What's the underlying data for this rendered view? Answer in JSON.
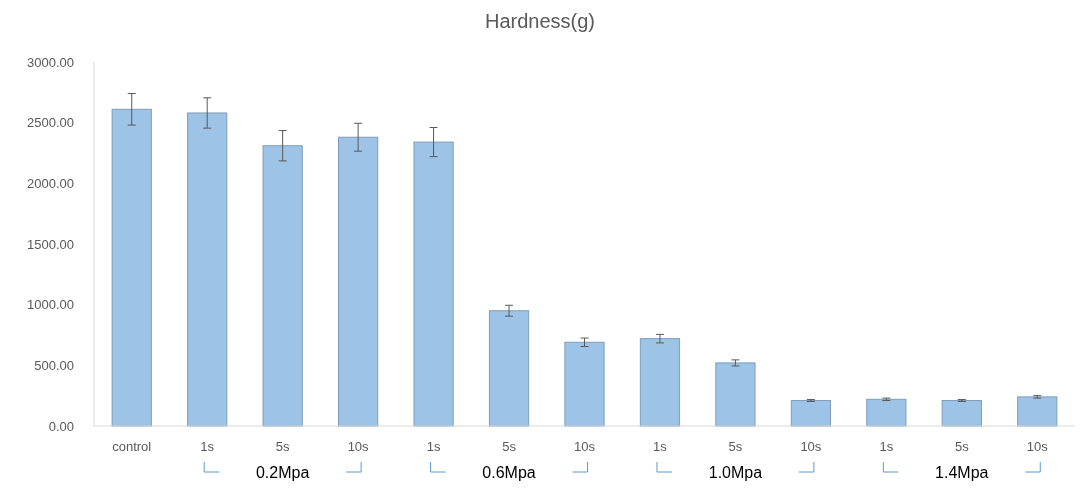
{
  "chart_data": {
    "type": "bar",
    "title": "Hardness(g)",
    "categories": [
      "control",
      "1s",
      "5s",
      "10s",
      "1s",
      "5s",
      "10s",
      "1s",
      "5s",
      "10s",
      "1s",
      "5s",
      "10s"
    ],
    "values": [
      2610,
      2580,
      2310,
      2380,
      2340,
      950,
      690,
      720,
      520,
      210,
      220,
      210,
      240
    ],
    "errors": [
      130,
      125,
      125,
      115,
      120,
      45,
      35,
      35,
      25,
      8,
      10,
      8,
      10
    ],
    "color": "#9dc3e6",
    "ylim": [
      0,
      3000
    ],
    "yticks": [
      {
        "value": 0,
        "label": "0.00"
      },
      {
        "value": 500,
        "label": "500.00"
      },
      {
        "value": 1000,
        "label": "1000.00"
      },
      {
        "value": 1500,
        "label": "1500.00"
      },
      {
        "value": 2000,
        "label": "2000.00"
      },
      {
        "value": 2500,
        "label": "2500.00"
      },
      {
        "value": 3000,
        "label": "3000.00"
      }
    ],
    "grid": false,
    "annotations": [
      "0.2Mpa",
      "0.6Mpa",
      "1.0Mpa",
      "1.4Mpa"
    ]
  }
}
